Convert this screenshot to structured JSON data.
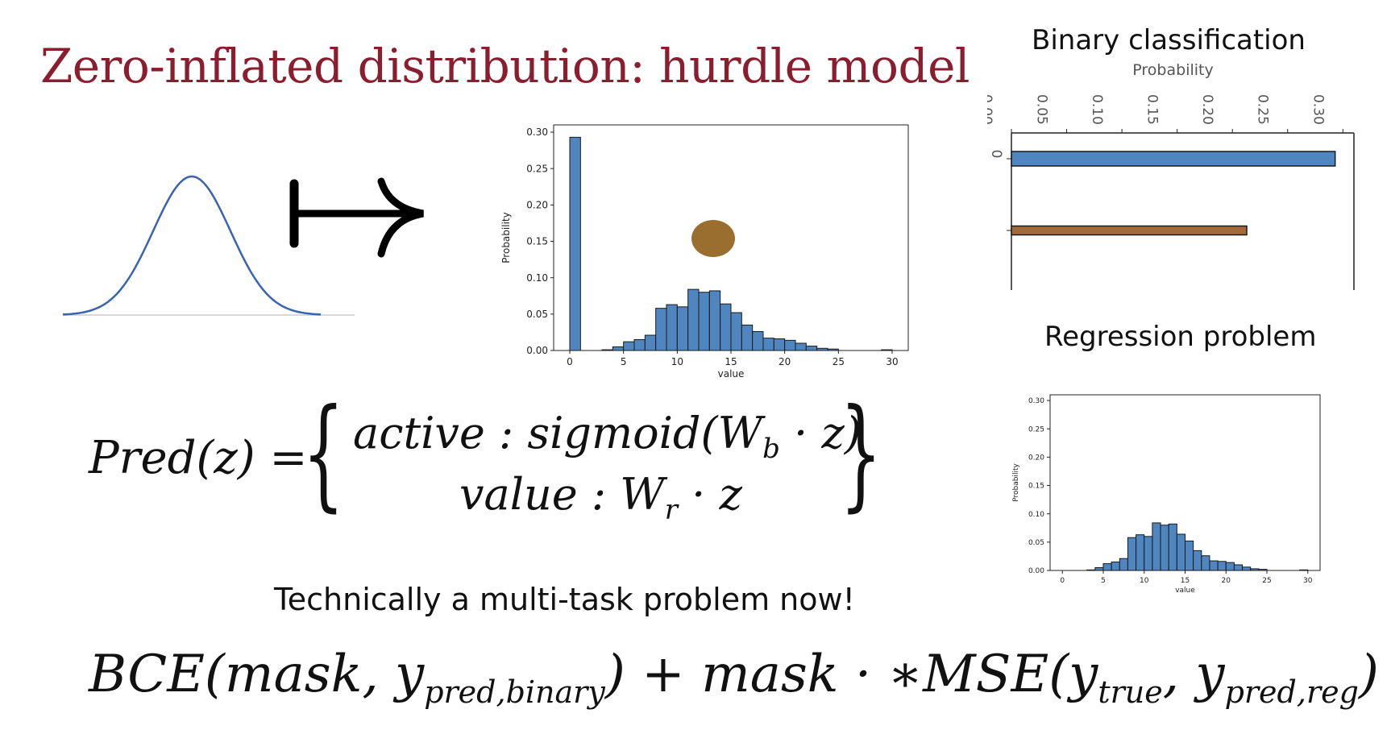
{
  "slide": {
    "title": "Zero-inflated distribution: hurdle model",
    "binary_heading": "Binary classification",
    "regression_heading": "Regression problem",
    "multitask_note": "Technically a multi-task problem now!",
    "colors": {
      "title": "#8b1e2e",
      "bar_blue": "#4f86bf",
      "bar_brown": "#a46b3a",
      "dot": "#9a6e2e",
      "curve": "#3a63b0"
    },
    "icons": [
      "gaussian-curve-icon",
      "mapsto-arrow-icon",
      "brown-dot-icon"
    ]
  },
  "equations": {
    "pred": {
      "lhs": "Pred(z) = ",
      "case1": "active : sigmoid(W",
      "case1_sub": "b",
      "case1_tail": " · z)",
      "case2": "value : W",
      "case2_sub": "r",
      "case2_tail": " · z"
    },
    "loss": {
      "p1": "BCE(mask, y",
      "sub1": "pred,binary",
      "p2": ") + mask · ∗MSE(y",
      "sub2": "true",
      "p3": ", y",
      "sub3": "pred,reg",
      "p4": ")"
    }
  },
  "chart_data": [
    {
      "type": "bar",
      "xlabel": "value",
      "ylabel": "Probability",
      "ylim": [
        0,
        0.31
      ],
      "xlim": [
        -1.5,
        31.5
      ],
      "yticks": [
        "0.00",
        "0.05",
        "0.10",
        "0.15",
        "0.20",
        "0.25",
        "0.30"
      ],
      "xticks": [
        "0",
        "5",
        "10",
        "15",
        "20",
        "25",
        "30"
      ],
      "bins": [
        {
          "x": 0,
          "y": 0.293
        },
        {
          "x": 3,
          "y": 0.001
        },
        {
          "x": 4,
          "y": 0.005
        },
        {
          "x": 5,
          "y": 0.012
        },
        {
          "x": 6,
          "y": 0.015
        },
        {
          "x": 7,
          "y": 0.021
        },
        {
          "x": 8,
          "y": 0.058
        },
        {
          "x": 9,
          "y": 0.063
        },
        {
          "x": 10,
          "y": 0.06
        },
        {
          "x": 11,
          "y": 0.084
        },
        {
          "x": 12,
          "y": 0.08
        },
        {
          "x": 13,
          "y": 0.082
        },
        {
          "x": 14,
          "y": 0.064
        },
        {
          "x": 15,
          "y": 0.052
        },
        {
          "x": 16,
          "y": 0.035
        },
        {
          "x": 17,
          "y": 0.026
        },
        {
          "x": 18,
          "y": 0.017
        },
        {
          "x": 19,
          "y": 0.016
        },
        {
          "x": 20,
          "y": 0.014
        },
        {
          "x": 21,
          "y": 0.01
        },
        {
          "x": 22,
          "y": 0.006
        },
        {
          "x": 23,
          "y": 0.003
        },
        {
          "x": 24,
          "y": 0.002
        },
        {
          "x": 29,
          "y": 0.001
        }
      ]
    },
    {
      "type": "bar",
      "orientation": "horizontal",
      "xlabel": "Probability",
      "xlim": [
        0,
        0.31
      ],
      "xticks": [
        "0.00",
        "0.05",
        "0.10",
        "0.15",
        "0.20",
        "0.25",
        "0.30"
      ],
      "categories": [
        "0",
        ""
      ],
      "values": [
        0.293,
        0.213
      ]
    },
    {
      "type": "bar",
      "xlabel": "value",
      "ylabel": "Probability",
      "ylim": [
        0,
        0.31
      ],
      "xlim": [
        -1.5,
        31.5
      ],
      "yticks": [
        "0.00",
        "0.05",
        "0.10",
        "0.15",
        "0.20",
        "0.25",
        "0.30"
      ],
      "xticks": [
        "0",
        "5",
        "10",
        "15",
        "20",
        "25",
        "30"
      ],
      "bins": [
        {
          "x": 3,
          "y": 0.001
        },
        {
          "x": 4,
          "y": 0.005
        },
        {
          "x": 5,
          "y": 0.012
        },
        {
          "x": 6,
          "y": 0.015
        },
        {
          "x": 7,
          "y": 0.021
        },
        {
          "x": 8,
          "y": 0.058
        },
        {
          "x": 9,
          "y": 0.063
        },
        {
          "x": 10,
          "y": 0.06
        },
        {
          "x": 11,
          "y": 0.084
        },
        {
          "x": 12,
          "y": 0.08
        },
        {
          "x": 13,
          "y": 0.082
        },
        {
          "x": 14,
          "y": 0.064
        },
        {
          "x": 15,
          "y": 0.052
        },
        {
          "x": 16,
          "y": 0.035
        },
        {
          "x": 17,
          "y": 0.026
        },
        {
          "x": 18,
          "y": 0.017
        },
        {
          "x": 19,
          "y": 0.016
        },
        {
          "x": 20,
          "y": 0.014
        },
        {
          "x": 21,
          "y": 0.01
        },
        {
          "x": 22,
          "y": 0.006
        },
        {
          "x": 23,
          "y": 0.003
        },
        {
          "x": 24,
          "y": 0.002
        },
        {
          "x": 29,
          "y": 0.001
        }
      ]
    }
  ]
}
